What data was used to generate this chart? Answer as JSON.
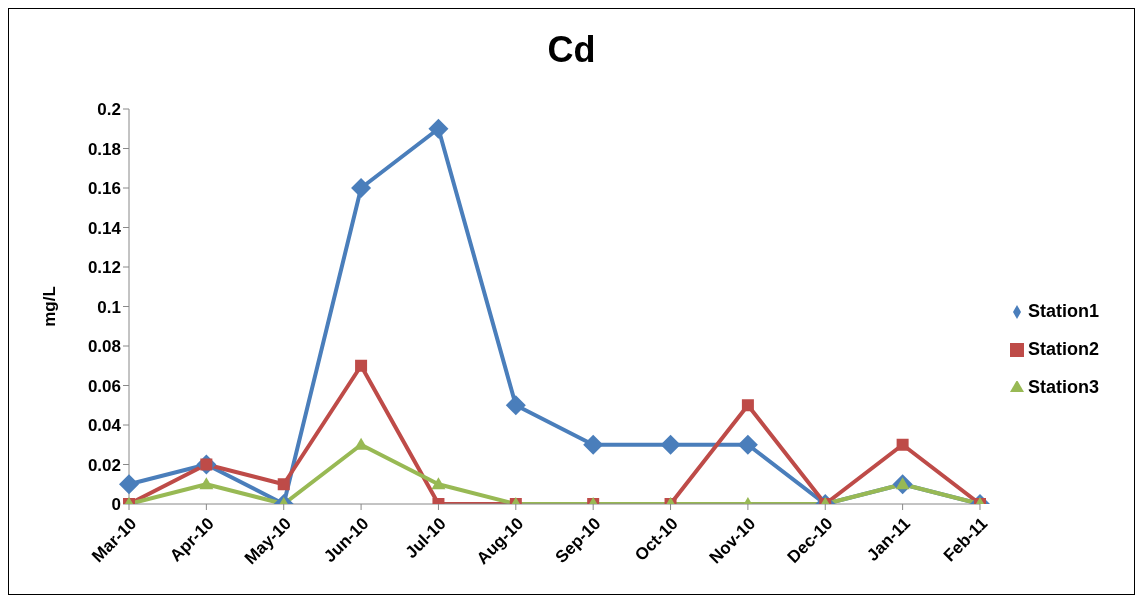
{
  "chart_data": {
    "type": "line",
    "title": "Cd",
    "ylabel": "mg/L",
    "categories": [
      "Mar-10",
      "Apr-10",
      "May-10",
      "Jun-10",
      "Jul-10",
      "Aug-10",
      "Sep-10",
      "Oct-10",
      "Nov-10",
      "Dec-10",
      "Jan-11",
      "Feb-11"
    ],
    "series": [
      {
        "name": "Station1",
        "color": "#4a7ebb",
        "marker": "diamond",
        "values": [
          0.01,
          0.02,
          0,
          0.16,
          0.19,
          0.05,
          0.03,
          0.03,
          0.03,
          0,
          0.01,
          0
        ]
      },
      {
        "name": "Station2",
        "color": "#be4b48",
        "marker": "square",
        "values": [
          0,
          0.02,
          0.01,
          0.07,
          0,
          0,
          0,
          0,
          0.05,
          0,
          0.03,
          0
        ]
      },
      {
        "name": "Station3",
        "color": "#98b954",
        "marker": "triangle",
        "values": [
          0,
          0.01,
          0,
          0.03,
          0.01,
          0,
          0,
          0,
          0,
          0,
          0.01,
          0
        ]
      }
    ],
    "ylim": [
      0,
      0.2
    ],
    "yticks": [
      0,
      0.02,
      0.04,
      0.06,
      0.08,
      0.1,
      0.12,
      0.14,
      0.16,
      0.18,
      0.2
    ],
    "grid": false,
    "legend": "right"
  }
}
